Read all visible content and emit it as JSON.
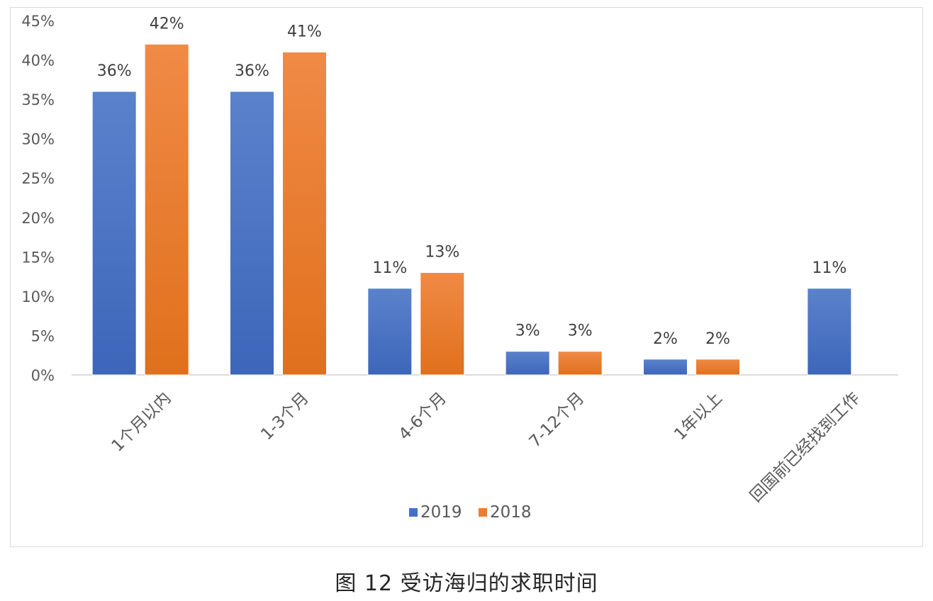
{
  "chart_data": {
    "type": "bar",
    "categories": [
      "1个月以内",
      "1-3个月",
      "4-6个月",
      "7-12个月",
      "1年以上",
      "回国前已经找到工作"
    ],
    "series": [
      {
        "name": "2019",
        "color": "#4472c4",
        "values": [
          36,
          36,
          11,
          3,
          2,
          11
        ],
        "labels": [
          "36%",
          "36%",
          "11%",
          "3%",
          "2%",
          "11%"
        ]
      },
      {
        "name": "2018",
        "color": "#ed7d31",
        "values": [
          42,
          41,
          13,
          3,
          2,
          null
        ],
        "labels": [
          "42%",
          "41%",
          "13%",
          "3%",
          "2%",
          ""
        ]
      }
    ],
    "y_ticks": [
      "0%",
      "5%",
      "10%",
      "15%",
      "20%",
      "25%",
      "30%",
      "35%",
      "40%",
      "45%"
    ],
    "ylim": [
      0,
      45
    ],
    "legend_position": "bottom",
    "grid": false
  },
  "caption": "图 12  受访海归的求职时间"
}
